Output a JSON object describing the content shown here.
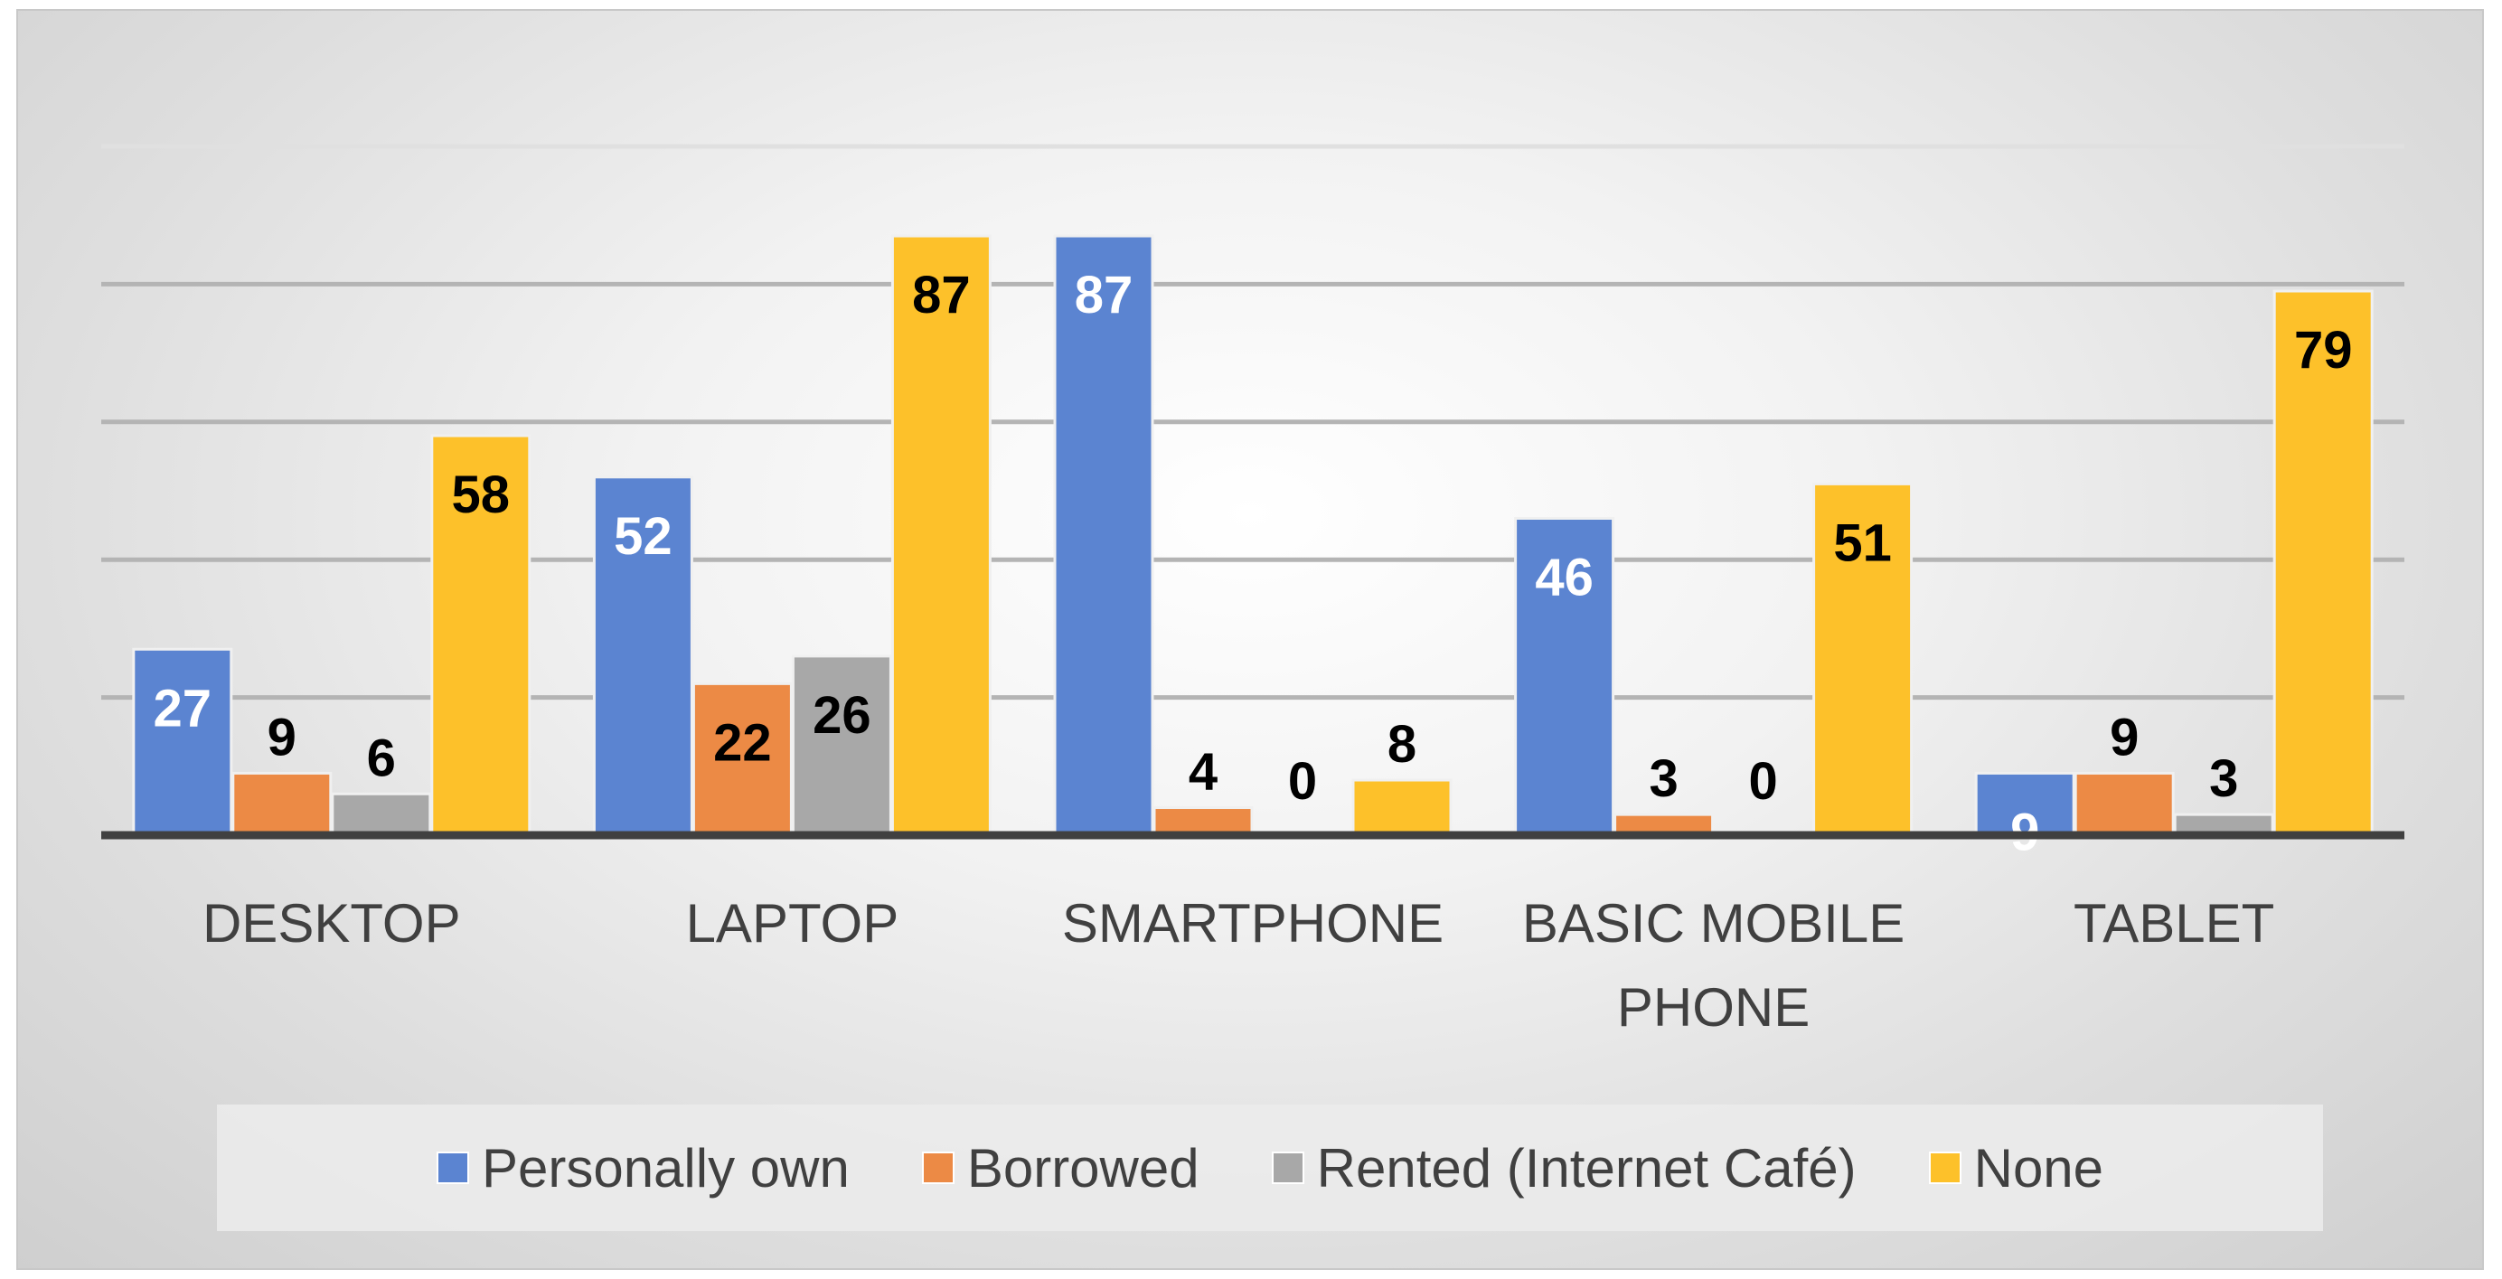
{
  "chart_data": {
    "type": "bar",
    "categories": [
      "DESKTOP",
      "LAPTOP",
      "SMARTPHONE",
      "BASIC MOBILE PHONE",
      "TABLET"
    ],
    "category_lines": [
      [
        "DESKTOP"
      ],
      [
        "LAPTOP"
      ],
      [
        "SMARTPHONE"
      ],
      [
        "BASIC MOBILE",
        "PHONE"
      ],
      [
        "TABLET"
      ]
    ],
    "series": [
      {
        "name": "Personally own",
        "values": [
          27,
          52,
          87,
          46,
          9
        ],
        "color": "#5b84d1",
        "label_color": "#ffffff"
      },
      {
        "name": "Borrowed",
        "values": [
          9,
          22,
          4,
          3,
          9
        ],
        "color": "#ec8a45",
        "label_color": "#000000"
      },
      {
        "name": "Rented (Internet Café)",
        "values": [
          6,
          26,
          0,
          0,
          3
        ],
        "color": "#a8a8a8",
        "label_color": "#000000"
      },
      {
        "name": "None",
        "values": [
          58,
          87,
          8,
          51,
          79
        ],
        "color": "#fdc12a",
        "label_color": "#000000"
      }
    ],
    "ylim": [
      0,
      100
    ],
    "grid": true,
    "legend_position": "bottom"
  }
}
